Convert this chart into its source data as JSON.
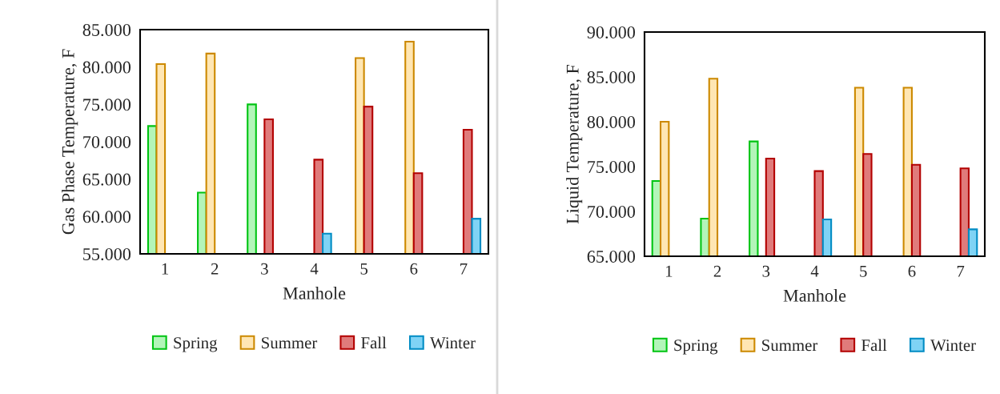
{
  "chart_data": [
    {
      "type": "bar",
      "categories": [
        "1",
        "2",
        "3",
        "4",
        "5",
        "6",
        "7"
      ],
      "xlabel": "Manhole",
      "ylabel": "Gas Phase Temperature, F",
      "ylim": [
        55,
        85
      ],
      "yticks": [
        {
          "value": 55,
          "label": "55.000"
        },
        {
          "value": 60,
          "label": "60.000"
        },
        {
          "value": 65,
          "label": "65.000"
        },
        {
          "value": 70,
          "label": "70.000"
        },
        {
          "value": 75,
          "label": "75.000"
        },
        {
          "value": 80,
          "label": "80.000"
        },
        {
          "value": 85,
          "label": "85.000"
        }
      ],
      "grid": false,
      "legend": "bottom",
      "series": [
        {
          "name": "Spring",
          "color": "#b3f5b9",
          "values": [
            72.1,
            63.2,
            75.0,
            null,
            null,
            null,
            null
          ]
        },
        {
          "name": "Summer",
          "color": "#ffe6b3",
          "values": [
            80.4,
            81.8,
            null,
            null,
            81.2,
            83.4,
            null
          ]
        },
        {
          "name": "Fall",
          "color": "#e07b7b",
          "values": [
            null,
            null,
            73.0,
            67.6,
            74.7,
            65.8,
            71.6
          ]
        },
        {
          "name": "Winter",
          "color": "#7fd3f5",
          "values": [
            null,
            null,
            null,
            57.7,
            null,
            null,
            59.7
          ]
        }
      ]
    },
    {
      "type": "bar",
      "categories": [
        "1",
        "2",
        "3",
        "4",
        "5",
        "6",
        "7"
      ],
      "xlabel": "Manhole",
      "ylabel": "Liquid Temperature, F",
      "ylim": [
        65,
        90
      ],
      "yticks": [
        {
          "value": 65,
          "label": "65.000"
        },
        {
          "value": 70,
          "label": "70.000"
        },
        {
          "value": 75,
          "label": "75.000"
        },
        {
          "value": 80,
          "label": "80.000"
        },
        {
          "value": 85,
          "label": "85.000"
        },
        {
          "value": 90,
          "label": "90.000"
        }
      ],
      "grid": false,
      "legend": "bottom",
      "series": [
        {
          "name": "Spring",
          "color": "#b3f5b9",
          "values": [
            73.4,
            69.2,
            77.8,
            null,
            null,
            null,
            null
          ]
        },
        {
          "name": "Summer",
          "color": "#ffe6b3",
          "values": [
            80.0,
            84.8,
            null,
            null,
            83.8,
            83.8,
            null
          ]
        },
        {
          "name": "Fall",
          "color": "#e07b7b",
          "values": [
            null,
            null,
            75.9,
            74.5,
            76.4,
            75.2,
            74.8
          ]
        },
        {
          "name": "Winter",
          "color": "#7fd3f5",
          "values": [
            null,
            null,
            null,
            69.1,
            null,
            null,
            68.0
          ]
        }
      ]
    }
  ]
}
